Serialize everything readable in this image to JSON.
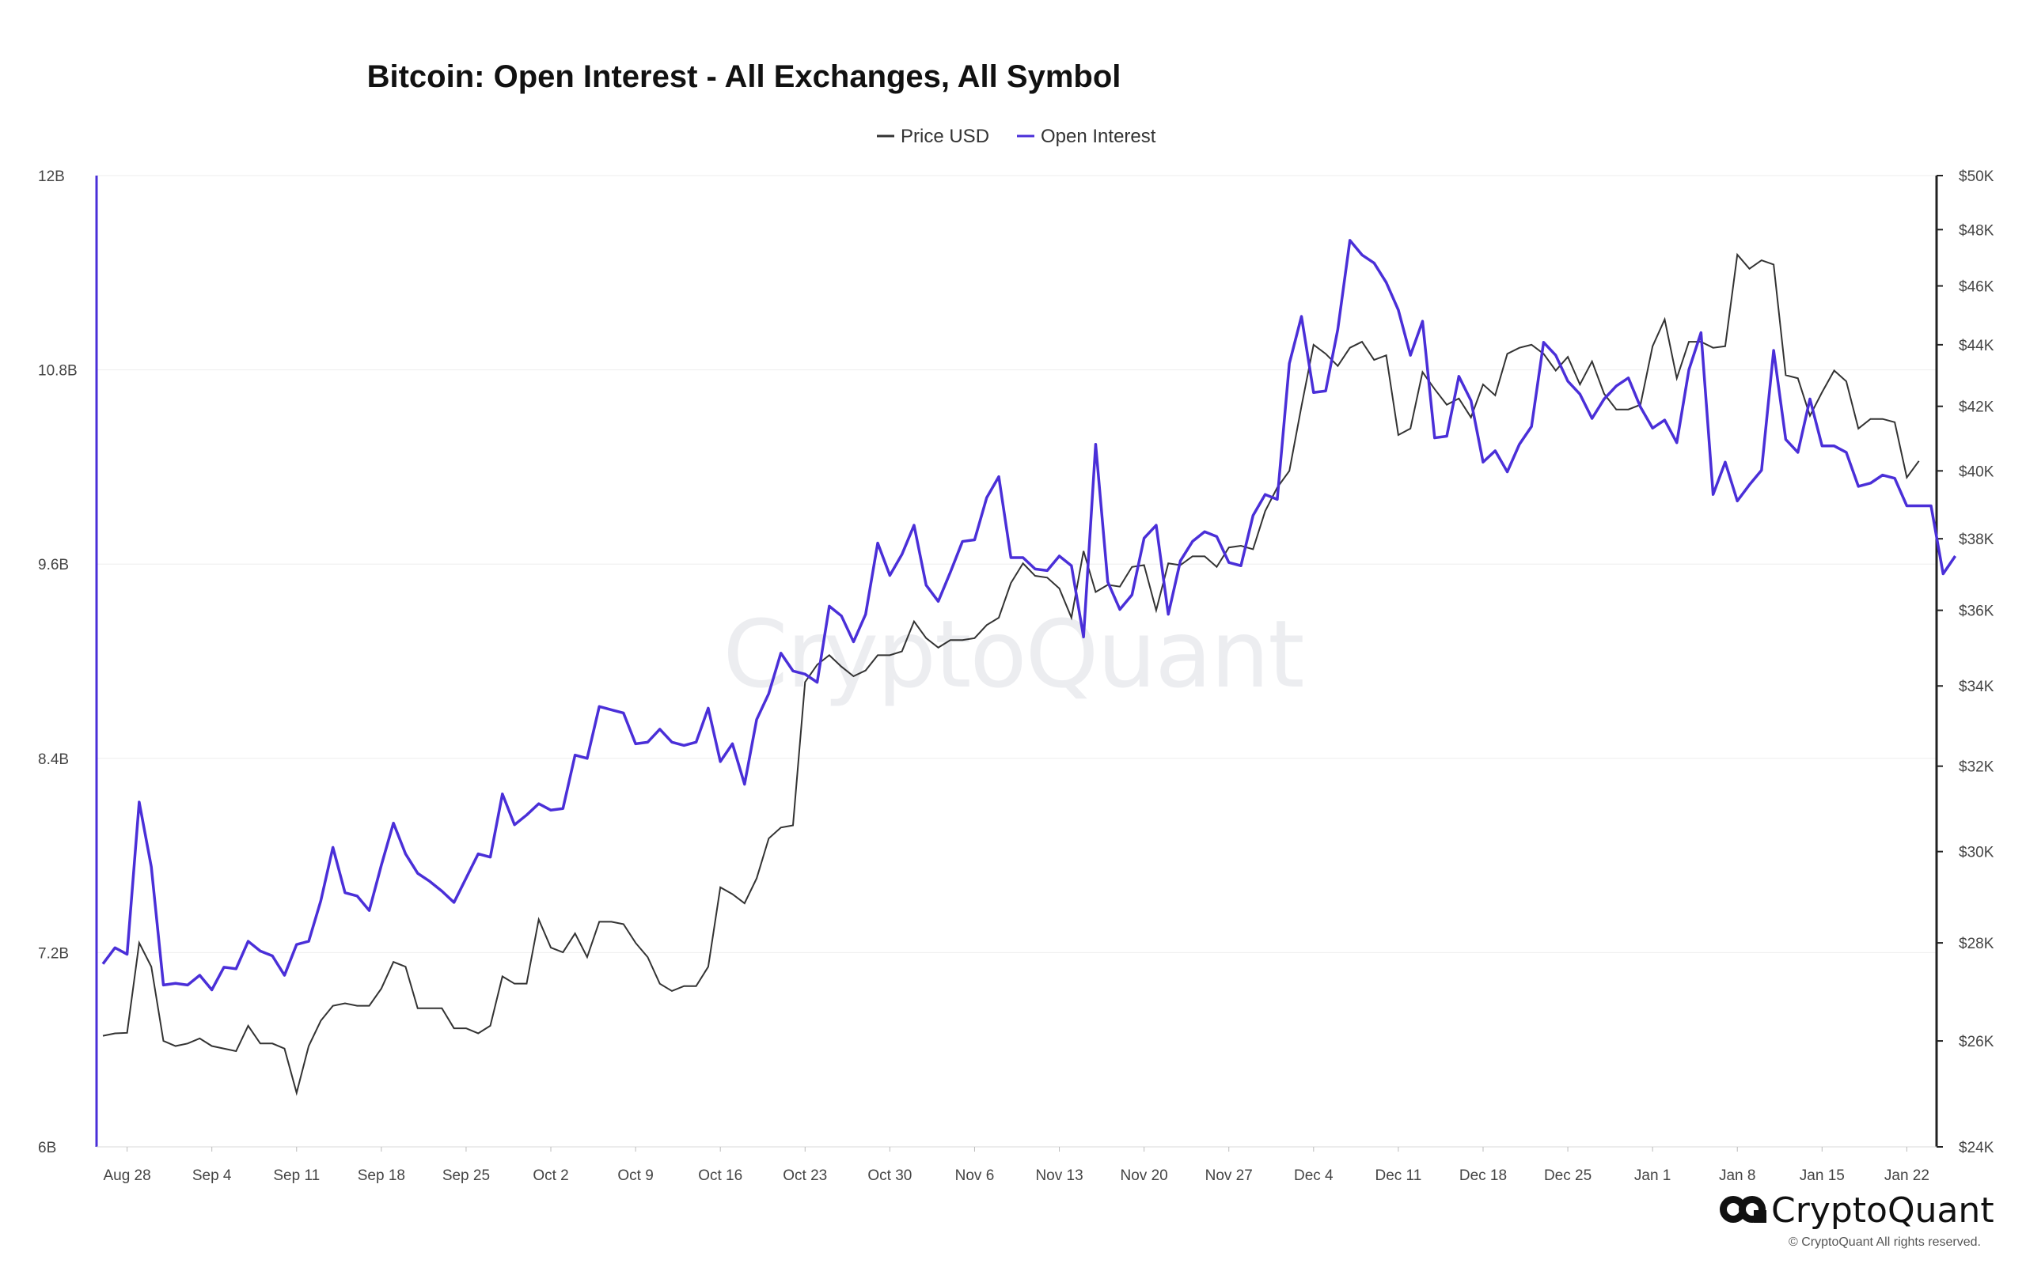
{
  "chart_data": {
    "type": "line",
    "title": "Bitcoin: Open Interest - All Exchanges, All Symbol",
    "legend": [
      {
        "name": "Price USD",
        "color": "#333333"
      },
      {
        "name": "Open Interest",
        "color": "#4a2fd8"
      }
    ],
    "legend_position": "top-center",
    "x_tick_labels": [
      "Aug 28",
      "Sep 4",
      "Sep 11",
      "Sep 18",
      "Sep 25",
      "Oct 2",
      "Oct 9",
      "Oct 16",
      "Oct 23",
      "Oct 30",
      "Nov 6",
      "Nov 13",
      "Nov 20",
      "Nov 27",
      "Dec 4",
      "Dec 11",
      "Dec 18",
      "Dec 25",
      "Jan 1",
      "Jan 8",
      "Jan 15",
      "Jan 22"
    ],
    "x_tick_day_index": [
      2,
      9,
      16,
      23,
      30,
      37,
      44,
      51,
      58,
      65,
      72,
      79,
      86,
      93,
      100,
      107,
      114,
      121,
      128,
      135,
      142,
      149
    ],
    "x_range": [
      0,
      151
    ],
    "y_left": {
      "label": "Open Interest",
      "range": [
        6,
        12
      ],
      "unit": "B",
      "ticks": [
        "12B",
        "10.8B",
        "9.6B",
        "8.4B",
        "7.2B",
        "6B"
      ],
      "tick_values": [
        12,
        10.8,
        9.6,
        8.4,
        7.2,
        6
      ]
    },
    "y_right": {
      "label": "Price USD",
      "scale": "log",
      "ticks": [
        "$50K",
        "$48K",
        "$46K",
        "$44K",
        "$42K",
        "$40K",
        "$38K",
        "$36K",
        "$34K",
        "$32K",
        "$30K",
        "$28K",
        "$26K",
        "$24K"
      ],
      "tick_values": [
        50000,
        48000,
        46000,
        44000,
        42000,
        40000,
        38000,
        36000,
        34000,
        32000,
        30000,
        28000,
        26000,
        24000
      ]
    },
    "series": [
      {
        "name": "Open Interest",
        "color": "#4a2fd8",
        "unit": "B",
        "values": [
          7.13,
          7.23,
          7.19,
          8.13,
          7.73,
          7.0,
          7.01,
          7.0,
          7.06,
          6.97,
          7.11,
          7.1,
          7.27,
          7.21,
          7.18,
          7.06,
          7.25,
          7.27,
          7.52,
          7.85,
          7.57,
          7.55,
          7.46,
          7.74,
          8.0,
          7.81,
          7.69,
          7.64,
          7.58,
          7.51,
          7.66,
          7.81,
          7.79,
          8.18,
          7.99,
          8.05,
          8.12,
          8.08,
          8.09,
          8.42,
          8.4,
          8.72,
          8.7,
          8.68,
          8.49,
          8.5,
          8.58,
          8.5,
          8.48,
          8.5,
          8.71,
          8.38,
          8.49,
          8.24,
          8.64,
          8.8,
          9.05,
          8.94,
          8.92,
          8.87,
          9.34,
          9.28,
          9.12,
          9.29,
          9.73,
          9.53,
          9.66,
          9.84,
          9.47,
          9.37,
          9.55,
          9.74,
          9.75,
          10.01,
          10.14,
          9.64,
          9.64,
          9.57,
          9.56,
          9.65,
          9.59,
          9.15,
          10.34,
          9.49,
          9.32,
          9.41,
          9.76,
          9.84,
          9.29,
          9.62,
          9.74,
          9.8,
          9.77,
          9.61,
          9.59,
          9.9,
          10.03,
          10.0,
          10.84,
          11.13,
          10.66,
          10.67,
          11.05,
          11.6,
          11.51,
          11.46,
          11.34,
          11.17,
          10.89,
          11.1,
          10.38,
          10.39,
          10.76,
          10.61,
          10.23,
          10.3,
          10.17,
          10.34,
          10.45,
          10.97,
          10.89,
          10.73,
          10.65,
          10.5,
          10.62,
          10.7,
          10.75,
          10.57,
          10.44,
          10.49,
          10.35,
          10.8,
          11.03,
          10.03,
          10.23,
          9.99,
          10.09,
          10.18,
          10.92,
          10.37,
          10.29,
          10.62,
          10.33,
          10.33,
          10.29,
          10.08,
          10.1,
          10.15,
          10.13,
          9.96,
          9.96,
          9.96,
          9.54,
          9.65
        ]
      },
      {
        "name": "Price USD",
        "color": "#333333",
        "unit": "USD",
        "values": [
          26100,
          26150,
          26160,
          28000,
          27500,
          26000,
          25900,
          25950,
          26050,
          25900,
          25850,
          25800,
          26300,
          25950,
          25950,
          25850,
          25000,
          25900,
          26400,
          26700,
          26750,
          26700,
          26700,
          27050,
          27600,
          27500,
          26650,
          26650,
          26650,
          26250,
          26250,
          26150,
          26300,
          27300,
          27150,
          27150,
          28500,
          27900,
          27800,
          28200,
          27700,
          28450,
          28450,
          28400,
          28000,
          27700,
          27150,
          27000,
          27100,
          27100,
          27500,
          29200,
          29050,
          28850,
          29400,
          30300,
          30550,
          30600,
          34100,
          34550,
          34800,
          34500,
          34250,
          34400,
          34800,
          34800,
          34900,
          35700,
          35250,
          35000,
          35200,
          35200,
          35250,
          35600,
          35800,
          36750,
          37300,
          36950,
          36900,
          36600,
          35800,
          37650,
          36500,
          36700,
          36650,
          37200,
          37250,
          36000,
          37300,
          37250,
          37500,
          37500,
          37200,
          37750,
          37800,
          37700,
          38800,
          39500,
          40000,
          42000,
          44000,
          43700,
          43300,
          43900,
          44100,
          43500,
          43650,
          41100,
          41300,
          43100,
          42550,
          42050,
          42250,
          41650,
          42700,
          42350,
          43700,
          43900,
          44000,
          43700,
          43150,
          43600,
          42700,
          43450,
          42400,
          41900,
          41900,
          42050,
          43950,
          44850,
          42900,
          44100,
          44100,
          43900,
          43950,
          47100,
          46600,
          46900,
          46750,
          43000,
          42900,
          41700,
          42450,
          43150,
          42800,
          41300,
          41600,
          41600,
          41500,
          39800,
          40300
        ]
      }
    ],
    "watermark": "CryptoQuant",
    "grid": true
  },
  "brand": {
    "name": "CryptoQuant",
    "copyright": "© CryptoQuant All rights reserved."
  }
}
